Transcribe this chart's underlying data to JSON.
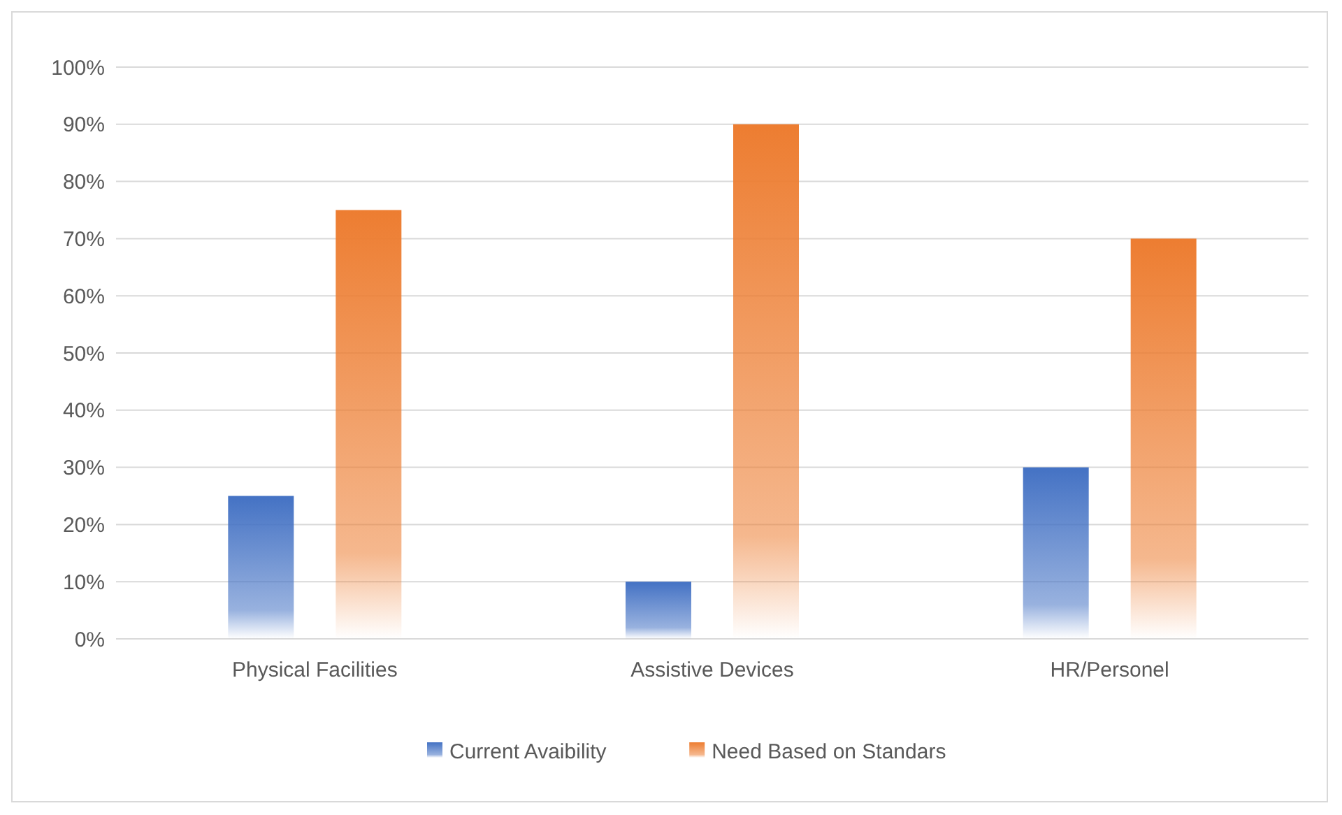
{
  "chart_data": {
    "type": "bar",
    "categories": [
      "Physical Facilities",
      "Assistive Devices",
      "HR/Personel"
    ],
    "series": [
      {
        "name": "Current Avaibility",
        "color": "#4472c4",
        "values": [
          25,
          10,
          30
        ]
      },
      {
        "name": "Need Based on Standars",
        "color": "#ed7d31",
        "values": [
          75,
          90,
          70
        ]
      }
    ],
    "ylim": [
      0,
      100
    ],
    "yticks": [
      {
        "value": 0,
        "label": "0%"
      },
      {
        "value": 10,
        "label": "10%"
      },
      {
        "value": 20,
        "label": "20%"
      },
      {
        "value": 30,
        "label": "30%"
      },
      {
        "value": 40,
        "label": "40%"
      },
      {
        "value": 50,
        "label": "50%"
      },
      {
        "value": 60,
        "label": "60%"
      },
      {
        "value": 70,
        "label": "70%"
      },
      {
        "value": 80,
        "label": "80%"
      },
      {
        "value": 90,
        "label": "90%"
      },
      {
        "value": 100,
        "label": "100%"
      }
    ],
    "grid": "y",
    "legend": "bottom"
  }
}
